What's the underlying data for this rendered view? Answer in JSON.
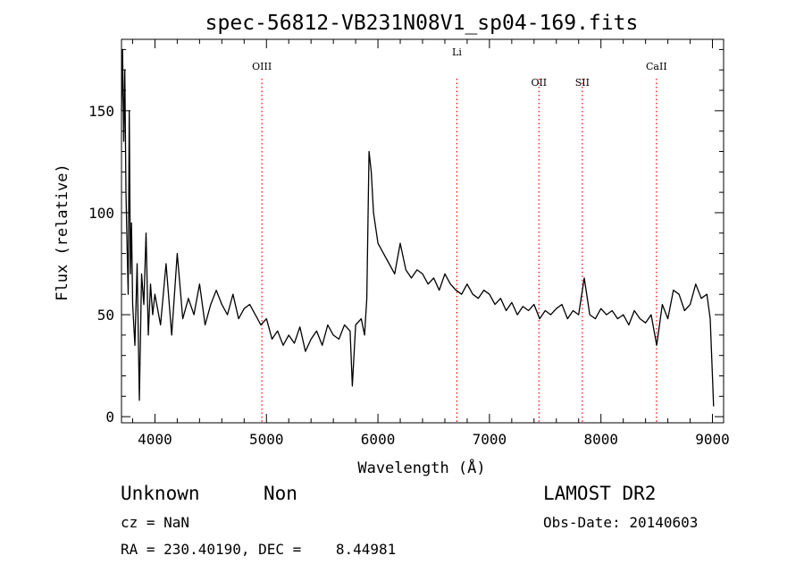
{
  "chart_data": {
    "type": "line",
    "title": "spec-56812-VB231N08V1_sp04-169.fits",
    "xlabel": "Wavelength (Å)",
    "ylabel": "Flux (relative)",
    "xlim": [
      3700,
      9100
    ],
    "ylim": [
      -3,
      185
    ],
    "x_ticks": [
      4000,
      5000,
      6000,
      7000,
      8000,
      9000
    ],
    "y_ticks": [
      0,
      50,
      100,
      150
    ],
    "grid": false,
    "line_color": "#000000",
    "marker_color": "#ff0000",
    "spectral_lines": [
      {
        "name": "OIII",
        "x": 4959
      },
      {
        "name": "Li",
        "x": 6708
      },
      {
        "name": "OII",
        "x": 7444
      },
      {
        "name": "SII",
        "x": 7833
      },
      {
        "name": "CaII",
        "x": 8498
      }
    ],
    "series": [
      {
        "x": [
          3700,
          3710,
          3720,
          3730,
          3740,
          3750,
          3760,
          3770,
          3780,
          3790,
          3800,
          3820,
          3840,
          3860,
          3880,
          3900,
          3920,
          3940,
          3960,
          3980,
          4000,
          4050,
          4100,
          4150,
          4200,
          4250,
          4300,
          4350,
          4400,
          4450,
          4500,
          4550,
          4600,
          4650,
          4700,
          4750,
          4800,
          4850,
          4900,
          4950,
          5000,
          5050,
          5100,
          5150,
          5200,
          5250,
          5300,
          5350,
          5400,
          5450,
          5500,
          5550,
          5600,
          5650,
          5700,
          5750,
          5770,
          5800,
          5850,
          5880,
          5900,
          5920,
          5940,
          5960,
          6000,
          6050,
          6100,
          6150,
          6200,
          6250,
          6300,
          6350,
          6400,
          6450,
          6500,
          6550,
          6600,
          6650,
          6700,
          6750,
          6800,
          6850,
          6900,
          6950,
          7000,
          7050,
          7100,
          7150,
          7200,
          7250,
          7300,
          7350,
          7400,
          7450,
          7500,
          7550,
          7600,
          7650,
          7700,
          7750,
          7800,
          7850,
          7900,
          7950,
          8000,
          8050,
          8100,
          8150,
          8200,
          8250,
          8300,
          8350,
          8400,
          8450,
          8500,
          8550,
          8600,
          8650,
          8700,
          8750,
          8800,
          8850,
          8900,
          8950,
          8980,
          9000,
          9010
        ],
        "y": [
          150,
          180,
          135,
          170,
          110,
          85,
          60,
          150,
          70,
          95,
          55,
          35,
          75,
          8,
          70,
          55,
          90,
          40,
          65,
          50,
          60,
          45,
          75,
          40,
          80,
          48,
          58,
          50,
          65,
          45,
          55,
          62,
          55,
          50,
          60,
          48,
          53,
          55,
          50,
          45,
          48,
          38,
          42,
          35,
          40,
          36,
          44,
          32,
          38,
          42,
          35,
          45,
          40,
          38,
          45,
          42,
          15,
          45,
          48,
          40,
          58,
          130,
          120,
          100,
          85,
          80,
          75,
          70,
          85,
          72,
          68,
          72,
          70,
          65,
          68,
          62,
          70,
          65,
          62,
          60,
          65,
          60,
          58,
          62,
          60,
          55,
          58,
          52,
          56,
          50,
          54,
          52,
          55,
          48,
          52,
          50,
          53,
          55,
          48,
          52,
          50,
          68,
          50,
          48,
          53,
          50,
          52,
          48,
          50,
          45,
          52,
          48,
          46,
          50,
          35,
          55,
          48,
          62,
          60,
          52,
          55,
          65,
          58,
          60,
          48,
          20,
          5
        ]
      }
    ]
  },
  "info": {
    "class": "Unknown",
    "subclass": "Non",
    "cz": "cz = NaN",
    "radec": "RA = 230.40190, DEC =    8.44981",
    "survey": "LAMOST DR2",
    "obsdate": "Obs-Date: 20140603"
  }
}
